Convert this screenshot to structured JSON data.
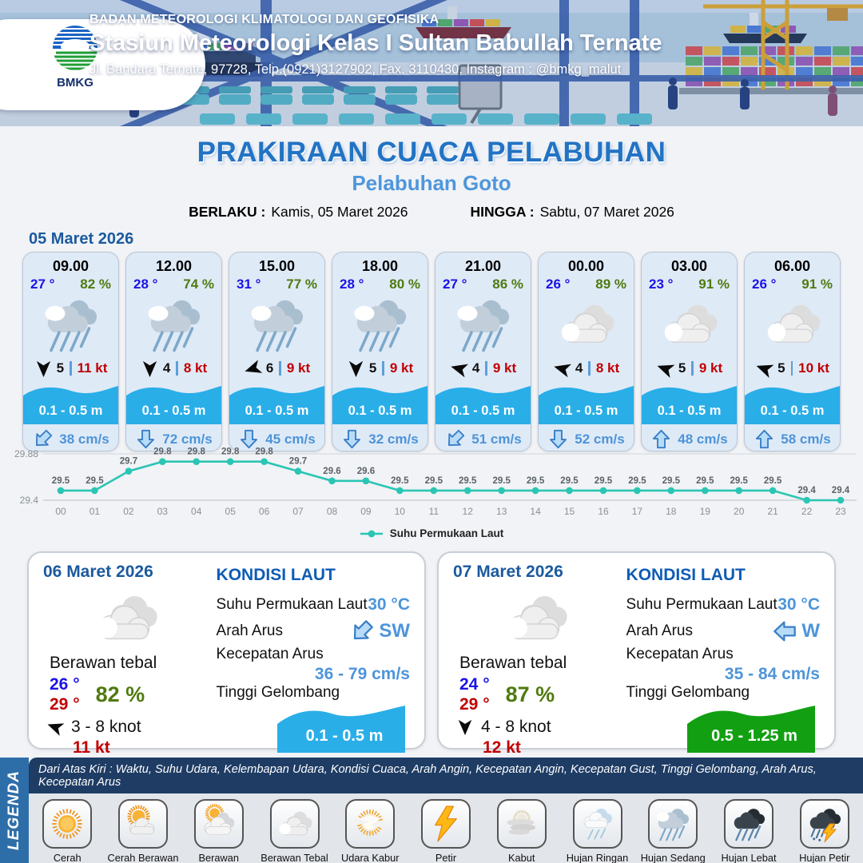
{
  "header": {
    "org": "BADAN METEOROLOGI KLIMATOLOGI DAN GEOFISIKA",
    "station": "Stasiun Meteorologi Kelas I Sultan Babullah Ternate",
    "address": "Jl. Bandara Ternate, 97728, Telp.(0921)3127902, Fax. 3110430, Instagram : @bmkg_malut",
    "logo_text": "BMKG"
  },
  "title": {
    "main": "PRAKIRAAN CUACA PELABUHAN",
    "sub": "Pelabuhan Goto",
    "valid_from_label": "BERLAKU :",
    "valid_from": "Kamis, 05 Maret 2026",
    "valid_to_label": "HINGGA :",
    "valid_to": "Sabtu, 07 Maret 2026"
  },
  "hourly": {
    "date": "05 Maret 2026",
    "cards": [
      {
        "time": "09.00",
        "temp": "27 °",
        "humidity": "82 %",
        "icon": "rain-medium",
        "wind_dir_deg": 180,
        "wind_bft": "5",
        "wind_kt": "11 kt",
        "wave": "0.1 - 0.5 m",
        "current_dir_deg": 225,
        "current": "38 cm/s"
      },
      {
        "time": "12.00",
        "temp": "28 °",
        "humidity": "74 %",
        "icon": "rain-medium",
        "wind_dir_deg": 180,
        "wind_bft": "4",
        "wind_kt": "8 kt",
        "wave": "0.1 - 0.5 m",
        "current_dir_deg": 180,
        "current": "72 cm/s"
      },
      {
        "time": "15.00",
        "temp": "31 °",
        "humidity": "77 %",
        "icon": "rain-medium",
        "wind_dir_deg": 252,
        "wind_bft": "6",
        "wind_kt": "9 kt",
        "wave": "0.1 - 0.5 m",
        "current_dir_deg": 180,
        "current": "45 cm/s"
      },
      {
        "time": "18.00",
        "temp": "28 °",
        "humidity": "80 %",
        "icon": "rain-medium",
        "wind_dir_deg": 180,
        "wind_bft": "5",
        "wind_kt": "9 kt",
        "wave": "0.1 - 0.5 m",
        "current_dir_deg": 180,
        "current": "32 cm/s"
      },
      {
        "time": "21.00",
        "temp": "27 °",
        "humidity": "86 %",
        "icon": "rain-medium",
        "wind_dir_deg": 285,
        "wind_bft": "4",
        "wind_kt": "9 kt",
        "wave": "0.1 - 0.5 m",
        "current_dir_deg": 225,
        "current": "51 cm/s"
      },
      {
        "time": "00.00",
        "temp": "26 °",
        "humidity": "89 %",
        "icon": "thick-cloud",
        "wind_dir_deg": 285,
        "wind_bft": "4",
        "wind_kt": "8 kt",
        "wave": "0.1 - 0.5 m",
        "current_dir_deg": 180,
        "current": "52 cm/s"
      },
      {
        "time": "03.00",
        "temp": "23 °",
        "humidity": "91 %",
        "icon": "thick-cloud",
        "wind_dir_deg": 290,
        "wind_bft": "5",
        "wind_kt": "9 kt",
        "wave": "0.1 - 0.5 m",
        "current_dir_deg": 0,
        "current": "48 cm/s"
      },
      {
        "time": "06.00",
        "temp": "26 °",
        "humidity": "91 %",
        "icon": "thick-cloud",
        "wind_dir_deg": 290,
        "wind_bft": "5",
        "wind_kt": "10 kt",
        "wave": "0.1 - 0.5 m",
        "current_dir_deg": 0,
        "current": "58 cm/s"
      }
    ]
  },
  "chart_data": {
    "type": "line",
    "series_name": "Suhu Permukaan Laut",
    "x": [
      "00",
      "01",
      "02",
      "03",
      "04",
      "05",
      "06",
      "07",
      "08",
      "09",
      "10",
      "11",
      "12",
      "13",
      "14",
      "15",
      "16",
      "17",
      "18",
      "19",
      "20",
      "21",
      "22",
      "23"
    ],
    "values": [
      29.5,
      29.5,
      29.7,
      29.8,
      29.8,
      29.8,
      29.8,
      29.7,
      29.6,
      29.6,
      29.5,
      29.5,
      29.5,
      29.5,
      29.5,
      29.5,
      29.5,
      29.5,
      29.5,
      29.5,
      29.5,
      29.5,
      29.4,
      29.4
    ],
    "ylim": [
      29.4,
      29.88
    ],
    "line_color": "#2bc5b4",
    "legend_position": "bottom",
    "grid": true
  },
  "days": [
    {
      "date": "06 Maret 2026",
      "icon": "thick-cloud",
      "condition": "Berawan tebal",
      "temp_min": "26 °",
      "temp_max": "29 °",
      "humidity": "82 %",
      "wind_dir_deg": 290,
      "wind_range": "3  - 8 knot",
      "gust": "11 kt",
      "sea": {
        "title": "KONDISI LAUT",
        "sst_label": "Suhu Permukaan Laut",
        "sst": "30 °C",
        "dir_label": "Arah Arus",
        "dir": "SW",
        "dir_deg": 225,
        "speed_label": "Kecepatan Arus",
        "speed": "36  - 79 cm/s",
        "wave_label": "Tinggi Gelombang",
        "wave": "0.1 - 0.5 m",
        "wave_color": "#29aee8"
      }
    },
    {
      "date": "07 Maret 2026",
      "icon": "thick-cloud",
      "condition": "Berawan tebal",
      "temp_min": "24 °",
      "temp_max": "29 °",
      "humidity": "87 %",
      "wind_dir_deg": 180,
      "wind_range": "4  - 8 knot",
      "gust": "12 kt",
      "sea": {
        "title": "KONDISI LAUT",
        "sst_label": "Suhu Permukaan Laut",
        "sst": "30 °C",
        "dir_label": "Arah Arus",
        "dir": "W",
        "dir_deg": 270,
        "speed_label": "Kecepatan Arus",
        "speed": "35  - 84 cm/s",
        "wave_label": "Tinggi Gelombang",
        "wave": "0.5 - 1.25 m",
        "wave_color": "#12a012"
      }
    }
  ],
  "legend": {
    "strip": "LEGENDA",
    "header": "Dari Atas Kiri : Waktu, Suhu Udara, Kelembapan Udara, Kondisi Cuaca, Arah Angin, Kecepatan Angin, Kecepatan Gust, Tinggi Gelombang, Arah Arus, Kecepatan Arus",
    "items": [
      {
        "label": "Cerah",
        "icon": "sun"
      },
      {
        "label": "Cerah Berawan",
        "icon": "sun-cloud"
      },
      {
        "label": "Berawan",
        "icon": "cloudy"
      },
      {
        "label": "Berawan Tebal",
        "icon": "thick-cloud"
      },
      {
        "label": "Udara Kabur",
        "icon": "haze"
      },
      {
        "label": "Petir",
        "icon": "thunder"
      },
      {
        "label": "Kabut",
        "icon": "fog"
      },
      {
        "label": "Hujan Ringan",
        "icon": "rain-light"
      },
      {
        "label": "Hujan Sedang",
        "icon": "rain-medium"
      },
      {
        "label": "Hujan Lebat",
        "icon": "rain-heavy"
      },
      {
        "label": "Hujan Petir",
        "icon": "rain-thunder"
      }
    ]
  },
  "colors": {
    "wave_band": "#29aee8",
    "temp_blue": "#1a12e8",
    "humidity_green": "#4f7a0e",
    "kt_red": "#c00000",
    "current_text": "#4d94d8",
    "title_blue": "#2273c4",
    "sub_blue": "#4f96dc",
    "date_blue": "#1b5a9e",
    "chart_line": "#2bc5b4",
    "legend_strip_blue": "#2d6ea8",
    "legend_head_navy": "#1e3c64"
  }
}
